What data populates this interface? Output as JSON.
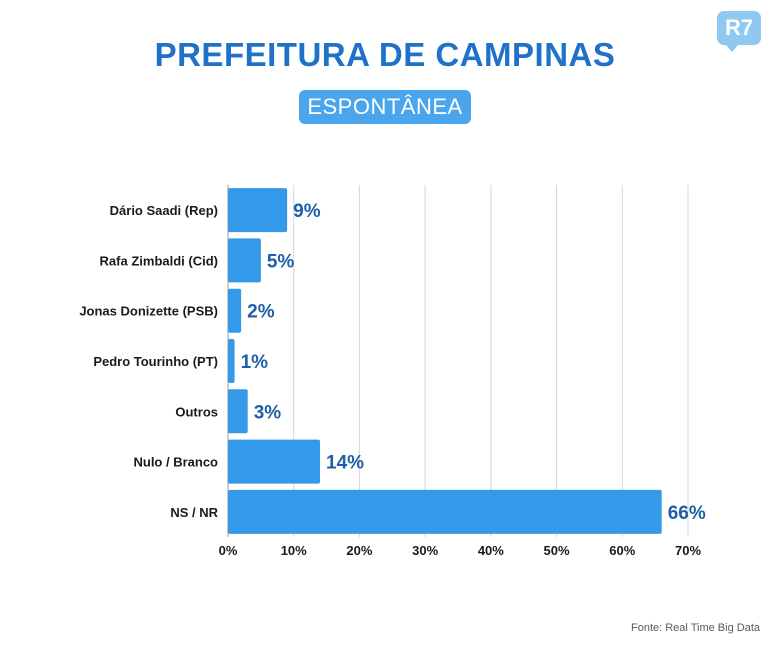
{
  "brand": {
    "logo_text": "R7"
  },
  "source": "Fonte: Real Time Big Data",
  "colors": {
    "bar": "#3399e8",
    "title": "#1f72c8",
    "value": "#1f5fa8",
    "grid": "#d6d6d6"
  },
  "chart_data": {
    "type": "bar",
    "orientation": "horizontal",
    "title": "PREFEITURA DE CAMPINAS",
    "subtitle": "ESPONTÂNEA",
    "categories": [
      "Dário Saadi (Rep)",
      "Rafa Zimbaldi (Cid)",
      "Jonas Donizette (PSB)",
      "Pedro Tourinho (PT)",
      "Outros",
      "Nulo / Branco",
      "NS / NR"
    ],
    "values": [
      9,
      5,
      2,
      1,
      3,
      14,
      66
    ],
    "value_labels": [
      "9%",
      "5%",
      "2%",
      "1%",
      "3%",
      "14%",
      "66%"
    ],
    "xlim": [
      0,
      70
    ],
    "xticks": [
      0,
      10,
      20,
      30,
      40,
      50,
      60,
      70
    ],
    "xtick_labels": [
      "0%",
      "10%",
      "20%",
      "30%",
      "40%",
      "50%",
      "60%",
      "70%"
    ],
    "grid": true,
    "xlabel": "",
    "ylabel": ""
  }
}
